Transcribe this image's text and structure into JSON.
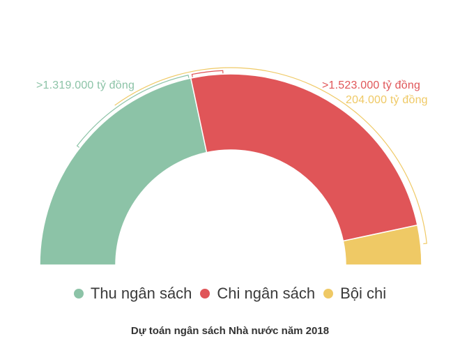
{
  "chart_data": {
    "type": "pie",
    "subtype": "semi-donut",
    "title": "Dự toán ngân sách Nhà nước năm 2018",
    "unit": "tỷ đồng",
    "series": [
      {
        "name": "Thu ngân sách",
        "value": 1319000,
        "label": ">1.319.000 tỷ đồng",
        "color": "#8cc3a7"
      },
      {
        "name": "Chi ngân sách",
        "value": 1523000,
        "label": ">1.523.000 tỷ đồng",
        "color": "#e05558"
      },
      {
        "name": "Bội chi",
        "value": 204000,
        "label": "204.000 tỷ đồng",
        "color": "#efc965"
      }
    ],
    "legend_position": "bottom"
  },
  "labels": {
    "thu": ">1.319.000 tỷ đồng",
    "chi": ">1.523.000 tỷ đồng",
    "boichi": "204.000 tỷ đồng"
  },
  "legend": [
    {
      "label": "Thu ngân sách",
      "color": "#8cc3a7"
    },
    {
      "label": "Chi ngân sách",
      "color": "#e05558"
    },
    {
      "label": "Bội chi",
      "color": "#efc965"
    }
  ],
  "caption": "Dự toán ngân sách Nhà nước năm 2018"
}
